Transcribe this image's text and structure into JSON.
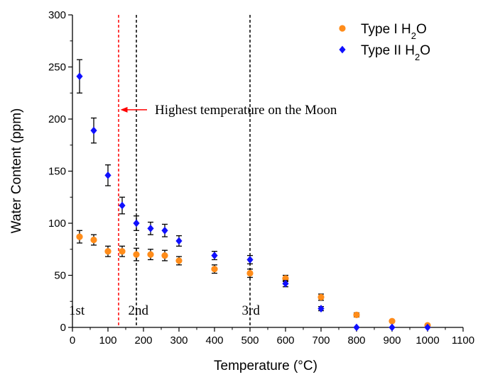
{
  "chart_data": {
    "type": "scatter",
    "xlabel": "Temperature (°C)",
    "ylabel": "Water Content (ppm)",
    "xlim": [
      0,
      1100
    ],
    "ylim": [
      0,
      300
    ],
    "xticks": [
      0,
      100,
      200,
      300,
      400,
      500,
      600,
      700,
      800,
      900,
      1000,
      1100
    ],
    "yticks": [
      0,
      50,
      100,
      150,
      200,
      250,
      300
    ],
    "grid": false,
    "legend_position": "top-right",
    "series": [
      {
        "name_main": "Type I H",
        "name_sub": "2",
        "name_tail": "O",
        "color": "#ff8c1a",
        "marker": "circle",
        "x": [
          20,
          60,
          100,
          140,
          180,
          220,
          260,
          300,
          400,
          500,
          600,
          700,
          800,
          900,
          1000
        ],
        "y": [
          87,
          84,
          73,
          73,
          70,
          70,
          69,
          64,
          56,
          52,
          47,
          29,
          12,
          6,
          2
        ],
        "err": [
          6,
          5,
          5,
          5,
          6,
          5,
          5,
          4,
          4,
          4,
          3,
          3,
          2,
          0,
          0
        ]
      },
      {
        "name_main": "Type II H",
        "name_sub": "2",
        "name_tail": "O",
        "color": "#1010ff",
        "marker": "diamond",
        "x": [
          20,
          60,
          100,
          140,
          180,
          220,
          260,
          300,
          400,
          500,
          600,
          700,
          800,
          900,
          1000
        ],
        "y": [
          241,
          189,
          146,
          117,
          100,
          95,
          93,
          83,
          69,
          65,
          42,
          18,
          0,
          0,
          0
        ],
        "err": [
          16,
          12,
          10,
          8,
          7,
          6,
          6,
          5,
          4,
          4,
          3,
          2,
          0,
          0,
          0
        ]
      }
    ],
    "vlines": [
      {
        "x": 130,
        "color": "#ff0000"
      },
      {
        "x": 180,
        "color": "#000000"
      },
      {
        "x": 500,
        "color": "#000000"
      }
    ],
    "stage_labels": [
      {
        "text": "1st",
        "x": 20,
        "y": 15
      },
      {
        "text": "2nd",
        "x": 187,
        "y": 15
      },
      {
        "text": "3rd",
        "x": 507,
        "y": 15
      }
    ],
    "annotation": {
      "text": "Highest temperature on the Moon",
      "arrow_tip_x": 135,
      "arrow_tail_x": 210,
      "y": 211
    }
  }
}
